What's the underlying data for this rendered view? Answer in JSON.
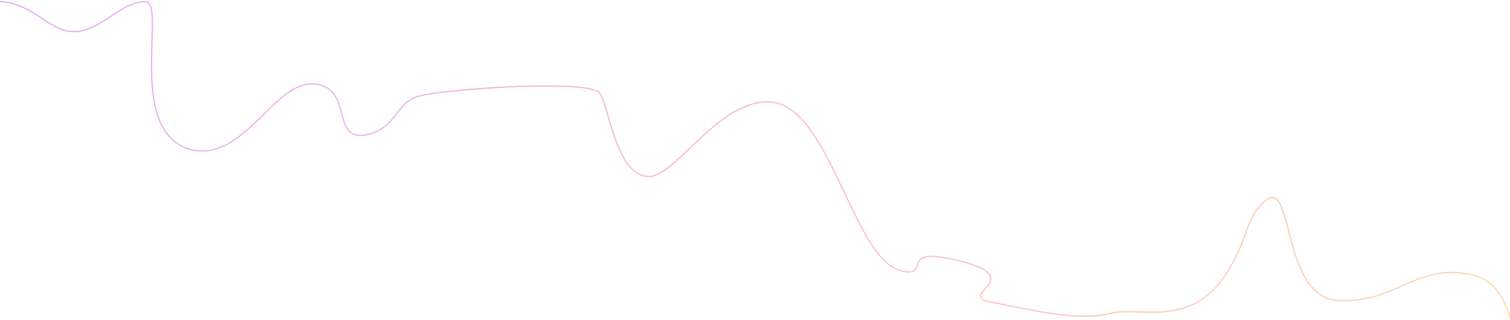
{
  "decoration": {
    "stroke_gradient": {
      "start_color": "#e0a8f2",
      "middle_color": "#f7b8cf",
      "end_color": "#fad7aa"
    }
  }
}
